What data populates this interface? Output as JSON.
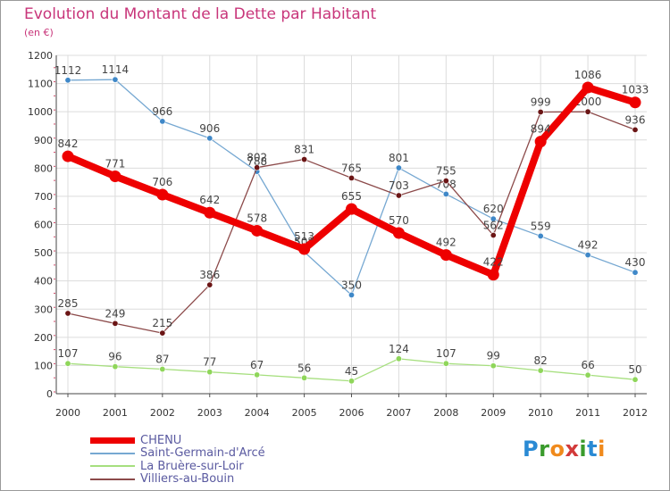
{
  "header": {
    "title": "Evolution du Montant de la Dette par Habitant",
    "unit": "(en €)"
  },
  "brand": {
    "text": "Proxiti",
    "colors": [
      "#2a8ad4",
      "#3a9b2c",
      "#f08a1c",
      "#d23a3a",
      "#3a9b2c",
      "#2a8ad4",
      "#f08a1c"
    ]
  },
  "chart_data": {
    "type": "line",
    "x": [
      "2000",
      "2001",
      "2002",
      "2003",
      "2004",
      "2005",
      "2006",
      "2007",
      "2008",
      "2009",
      "2010",
      "2011",
      "2012"
    ],
    "y_ticks": [
      0,
      100,
      200,
      300,
      400,
      500,
      600,
      700,
      800,
      900,
      1000,
      1100,
      1200
    ],
    "ylim": [
      0,
      1200
    ],
    "grid": true,
    "legend_position": "bottom-left",
    "series": [
      {
        "name": "CHENU",
        "color": "#ee0000",
        "marker": "#ee0000",
        "values": [
          842,
          771,
          706,
          642,
          578,
          513,
          655,
          570,
          492,
          422,
          894,
          1086,
          1033
        ],
        "labels": [
          "842",
          "771",
          "706",
          "642",
          "578",
          "513",
          "655",
          "570",
          "492",
          "422",
          "894",
          "1086",
          "1033"
        ]
      },
      {
        "name": "Saint-Germain-d'Arcé",
        "color": "#76a8d2",
        "marker": "#3f88c8",
        "values": [
          1112,
          1114,
          966,
          906,
          788,
          503,
          350,
          801,
          708,
          620,
          559,
          492,
          430
        ],
        "labels": [
          "1112",
          "1114",
          "966",
          "906",
          "788",
          "503",
          "350",
          "801",
          "708",
          "620",
          "559",
          "492",
          "430"
        ]
      },
      {
        "name": "La Bruère-sur-Loir",
        "color": "#a6df7e",
        "marker": "#8fd65a",
        "values": [
          107,
          96,
          87,
          77,
          67,
          56,
          45,
          124,
          107,
          99,
          82,
          66,
          50
        ],
        "labels": [
          "107",
          "96",
          "87",
          "77",
          "67",
          "56",
          "45",
          "124",
          "107",
          "99",
          "82",
          "66",
          "50"
        ]
      },
      {
        "name": "Villiers-au-Bouin",
        "color": "#8c4a4a",
        "marker": "#6b1515",
        "values": [
          285,
          249,
          215,
          386,
          802,
          831,
          765,
          703,
          755,
          562,
          999,
          1000,
          936
        ],
        "labels": [
          "285",
          "249",
          "215",
          "386",
          "802",
          "831",
          "765",
          "703",
          "755",
          "562",
          "999",
          "1000",
          "936"
        ]
      }
    ]
  }
}
